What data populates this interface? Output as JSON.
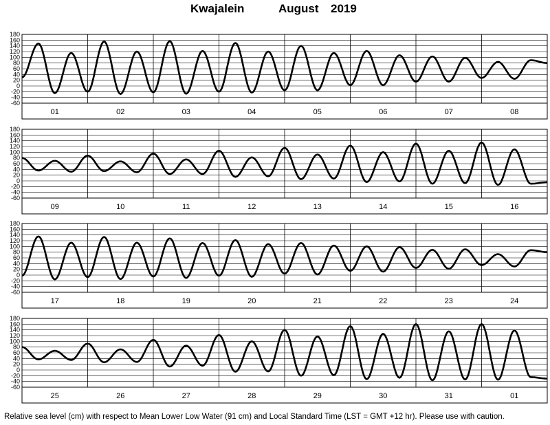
{
  "header": {
    "station": "Kwajalein",
    "month": "August",
    "year": "2019"
  },
  "footer": {
    "note": "Relative sea level (cm) with respect to Mean Lower Low Water (91 cm) and Local Standard Time (LST = GMT +12 hr). Please use with caution."
  },
  "chart_data": [
    {
      "type": "line",
      "title": "",
      "xlabel": "",
      "ylabel": "",
      "ylim": [
        -60,
        180
      ],
      "y_ticks": [
        -60,
        -40,
        -20,
        0,
        20,
        40,
        60,
        80,
        100,
        120,
        140,
        160,
        180
      ],
      "grid": true,
      "x_tick_labels": [
        "01",
        "02",
        "03",
        "04",
        "05",
        "06",
        "07",
        "08"
      ],
      "series": [
        {
          "values": [
            30,
            148,
            -25,
            115,
            -20,
            155,
            -28,
            120,
            -22,
            156,
            -27,
            122,
            -20,
            150,
            -23,
            120,
            -15,
            140,
            -15,
            115,
            3,
            122,
            3,
            107,
            15,
            103,
            15,
            98,
            28,
            84,
            25,
            90,
            80
          ]
        }
      ]
    },
    {
      "type": "line",
      "title": "",
      "xlabel": "",
      "ylabel": "",
      "ylim": [
        -60,
        180
      ],
      "y_ticks": [
        -60,
        -40,
        -20,
        0,
        20,
        40,
        60,
        80,
        100,
        120,
        140,
        160,
        180
      ],
      "grid": true,
      "x_tick_labels": [
        "09",
        "10",
        "11",
        "12",
        "13",
        "14",
        "15",
        "16"
      ],
      "series": [
        {
          "values": [
            80,
            36,
            70,
            32,
            88,
            34,
            68,
            30,
            95,
            24,
            75,
            24,
            105,
            14,
            82,
            16,
            115,
            6,
            92,
            8,
            123,
            -4,
            100,
            -2,
            130,
            -10,
            105,
            -8,
            134,
            -14,
            110,
            -10,
            -5
          ]
        }
      ]
    },
    {
      "type": "line",
      "title": "",
      "xlabel": "",
      "ylabel": "",
      "ylim": [
        -60,
        180
      ],
      "y_ticks": [
        -60,
        -40,
        -20,
        0,
        20,
        40,
        60,
        80,
        100,
        120,
        140,
        160,
        180
      ],
      "grid": true,
      "x_tick_labels": [
        "17",
        "18",
        "19",
        "20",
        "21",
        "22",
        "23",
        "24"
      ],
      "series": [
        {
          "values": [
            -2,
            135,
            -15,
            113,
            -7,
            133,
            -14,
            113,
            -5,
            128,
            -10,
            112,
            -2,
            122,
            -6,
            108,
            5,
            112,
            2,
            103,
            15,
            100,
            12,
            97,
            25,
            88,
            22,
            90,
            35,
            73,
            30,
            87,
            80
          ]
        }
      ]
    },
    {
      "type": "line",
      "title": "",
      "xlabel": "",
      "ylabel": "",
      "ylim": [
        -60,
        180
      ],
      "y_ticks": [
        -60,
        -40,
        -20,
        0,
        20,
        40,
        60,
        80,
        100,
        120,
        140,
        160,
        180
      ],
      "grid": true,
      "x_tick_labels": [
        "25",
        "26",
        "27",
        "28",
        "29",
        "30",
        "31",
        "01"
      ],
      "series": [
        {
          "values": [
            80,
            37,
            67,
            35,
            92,
            27,
            72,
            28,
            105,
            12,
            85,
            15,
            122,
            -6,
            100,
            -5,
            140,
            -20,
            117,
            -18,
            153,
            -32,
            126,
            -27,
            160,
            -36,
            135,
            -33,
            160,
            -34,
            138,
            -25,
            -30
          ]
        }
      ]
    }
  ]
}
